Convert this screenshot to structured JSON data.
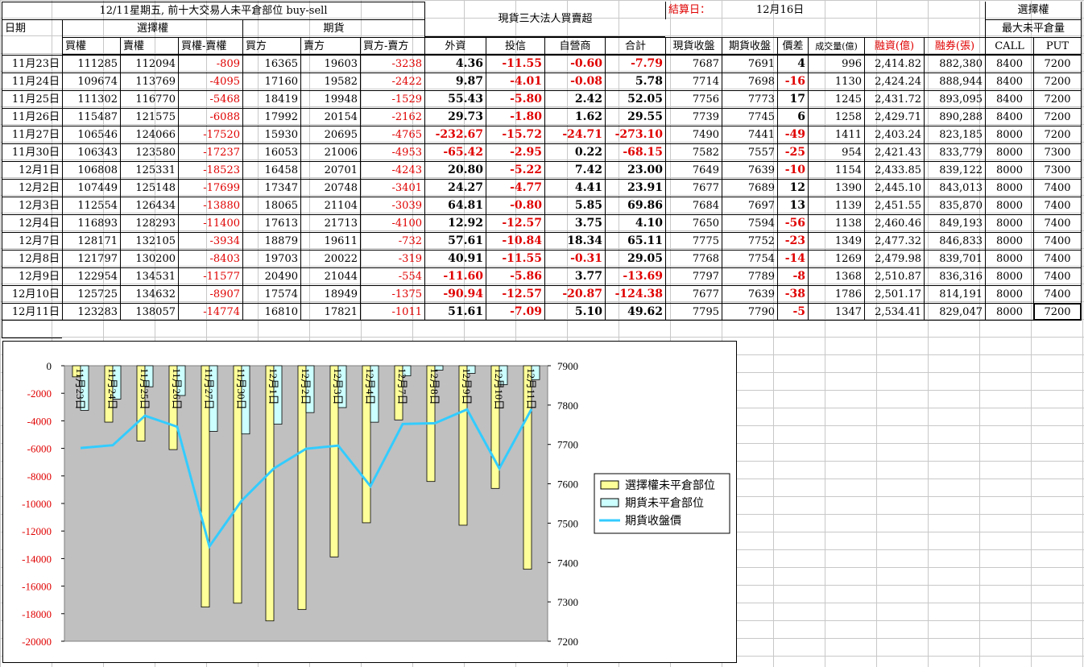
{
  "title": "12/11星期五, 前十大交易人未平倉部位 buy-sell",
  "institution_title": "現貨三大法人買賣超",
  "settlement_label": "結算日：",
  "settlement_date": "12月16日",
  "options_header": "選擇權",
  "max_oi_header": "最大未平倉量",
  "col_date": "日期",
  "col_opt": "選擇權",
  "col_fut": "期貨",
  "headers": {
    "buy_call": "買權",
    "sell_put": "賣權",
    "diff_opt": "買權-賣權",
    "buyer": "買方",
    "seller": "賣方",
    "diff_fut": "買方-賣方",
    "foreign": "外資",
    "trust": "投信",
    "dealer": "自營商",
    "total": "合計",
    "spot_close": "現貨收盤",
    "fut_close": "期貨收盤",
    "spread": "價差",
    "volume": "成交量(億)",
    "margin": "融資(億)",
    "short": "融券(張)",
    "call": "CALL",
    "put": "PUT"
  },
  "rows": [
    {
      "date": "11月23日",
      "buy_call": "111285",
      "sell_put": "112094",
      "diff_opt": "-809",
      "buyer": "16365",
      "seller": "19603",
      "diff_fut": "-3238",
      "foreign": "4.36",
      "trust": "-11.55",
      "dealer": "-0.60",
      "total": "-7.79",
      "spot": "7687",
      "fut": "7691",
      "spread": "4",
      "volume": "996",
      "margin": "2,414.82",
      "short": "882,380",
      "call": "8400",
      "put": "7200"
    },
    {
      "date": "11月24日",
      "buy_call": "109674",
      "sell_put": "113769",
      "diff_opt": "-4095",
      "buyer": "17160",
      "seller": "19582",
      "diff_fut": "-2422",
      "foreign": "9.87",
      "trust": "-4.01",
      "dealer": "-0.08",
      "total": "5.78",
      "spot": "7714",
      "fut": "7698",
      "spread": "-16",
      "volume": "1130",
      "margin": "2,424.24",
      "short": "888,944",
      "call": "8400",
      "put": "7200"
    },
    {
      "date": "11月25日",
      "buy_call": "111302",
      "sell_put": "116770",
      "diff_opt": "-5468",
      "buyer": "18419",
      "seller": "19948",
      "diff_fut": "-1529",
      "foreign": "55.43",
      "trust": "-5.80",
      "dealer": "2.42",
      "total": "52.05",
      "spot": "7756",
      "fut": "7773",
      "spread": "17",
      "volume": "1245",
      "margin": "2,431.72",
      "short": "893,095",
      "call": "8400",
      "put": "7200"
    },
    {
      "date": "11月26日",
      "buy_call": "115487",
      "sell_put": "121575",
      "diff_opt": "-6088",
      "buyer": "17992",
      "seller": "20154",
      "diff_fut": "-2162",
      "foreign": "29.73",
      "trust": "-1.80",
      "dealer": "1.62",
      "total": "29.55",
      "spot": "7739",
      "fut": "7745",
      "spread": "6",
      "volume": "1258",
      "margin": "2,429.71",
      "short": "890,288",
      "call": "8400",
      "put": "7200"
    },
    {
      "date": "11月27日",
      "buy_call": "106546",
      "sell_put": "124066",
      "diff_opt": "-17520",
      "buyer": "15930",
      "seller": "20695",
      "diff_fut": "-4765",
      "foreign": "-232.67",
      "trust": "-15.72",
      "dealer": "-24.71",
      "total": "-273.10",
      "spot": "7490",
      "fut": "7441",
      "spread": "-49",
      "volume": "1411",
      "margin": "2,403.24",
      "short": "823,185",
      "call": "8000",
      "put": "7200"
    },
    {
      "date": "11月30日",
      "buy_call": "106343",
      "sell_put": "123580",
      "diff_opt": "-17237",
      "buyer": "16053",
      "seller": "21006",
      "diff_fut": "-4953",
      "foreign": "-65.42",
      "trust": "-2.95",
      "dealer": "0.22",
      "total": "-68.15",
      "spot": "7582",
      "fut": "7557",
      "spread": "-25",
      "volume": "954",
      "margin": "2,421.43",
      "short": "833,779",
      "call": "8000",
      "put": "7300"
    },
    {
      "date": "12月1日",
      "buy_call": "106808",
      "sell_put": "125331",
      "diff_opt": "-18523",
      "buyer": "16458",
      "seller": "20701",
      "diff_fut": "-4243",
      "foreign": "20.80",
      "trust": "-5.22",
      "dealer": "7.42",
      "total": "23.00",
      "spot": "7649",
      "fut": "7639",
      "spread": "-10",
      "volume": "1154",
      "margin": "2,433.85",
      "short": "839,122",
      "call": "8000",
      "put": "7300"
    },
    {
      "date": "12月2日",
      "buy_call": "107449",
      "sell_put": "125148",
      "diff_opt": "-17699",
      "buyer": "17347",
      "seller": "20748",
      "diff_fut": "-3401",
      "foreign": "24.27",
      "trust": "-4.77",
      "dealer": "4.41",
      "total": "23.91",
      "spot": "7677",
      "fut": "7689",
      "spread": "12",
      "volume": "1390",
      "margin": "2,445.10",
      "short": "843,013",
      "call": "8000",
      "put": "7400"
    },
    {
      "date": "12月3日",
      "buy_call": "112554",
      "sell_put": "126434",
      "diff_opt": "-13880",
      "buyer": "18065",
      "seller": "21104",
      "diff_fut": "-3039",
      "foreign": "64.81",
      "trust": "-0.80",
      "dealer": "5.85",
      "total": "69.86",
      "spot": "7684",
      "fut": "7697",
      "spread": "13",
      "volume": "1139",
      "margin": "2,451.55",
      "short": "835,870",
      "call": "8000",
      "put": "7400"
    },
    {
      "date": "12月4日",
      "buy_call": "116893",
      "sell_put": "128293",
      "diff_opt": "-11400",
      "buyer": "17613",
      "seller": "21713",
      "diff_fut": "-4100",
      "foreign": "12.92",
      "trust": "-12.57",
      "dealer": "3.75",
      "total": "4.10",
      "spot": "7650",
      "fut": "7594",
      "spread": "-56",
      "volume": "1138",
      "margin": "2,460.46",
      "short": "849,193",
      "call": "8000",
      "put": "7400"
    },
    {
      "date": "12月7日",
      "buy_call": "128171",
      "sell_put": "132105",
      "diff_opt": "-3934",
      "buyer": "18879",
      "seller": "19611",
      "diff_fut": "-732",
      "foreign": "57.61",
      "trust": "-10.84",
      "dealer": "18.34",
      "total": "65.11",
      "spot": "7775",
      "fut": "7752",
      "spread": "-23",
      "volume": "1349",
      "margin": "2,477.32",
      "short": "846,833",
      "call": "8000",
      "put": "7400"
    },
    {
      "date": "12月8日",
      "buy_call": "121797",
      "sell_put": "130200",
      "diff_opt": "-8403",
      "buyer": "19703",
      "seller": "20022",
      "diff_fut": "-319",
      "foreign": "40.91",
      "trust": "-11.55",
      "dealer": "-0.31",
      "total": "29.05",
      "spot": "7768",
      "fut": "7754",
      "spread": "-14",
      "volume": "1269",
      "margin": "2,479.98",
      "short": "839,701",
      "call": "8000",
      "put": "7400"
    },
    {
      "date": "12月9日",
      "buy_call": "122954",
      "sell_put": "134531",
      "diff_opt": "-11577",
      "buyer": "20490",
      "seller": "21044",
      "diff_fut": "-554",
      "foreign": "-11.60",
      "trust": "-5.86",
      "dealer": "3.77",
      "total": "-13.69",
      "spot": "7797",
      "fut": "7789",
      "spread": "-8",
      "volume": "1368",
      "margin": "2,510.87",
      "short": "836,316",
      "call": "8000",
      "put": "7400"
    },
    {
      "date": "12月10日",
      "buy_call": "125725",
      "sell_put": "134632",
      "diff_opt": "-8907",
      "buyer": "17574",
      "seller": "18949",
      "diff_fut": "-1375",
      "foreign": "-90.94",
      "trust": "-12.57",
      "dealer": "-20.87",
      "total": "-124.38",
      "spot": "7677",
      "fut": "7639",
      "spread": "-38",
      "volume": "1786",
      "margin": "2,501.17",
      "short": "814,191",
      "call": "8000",
      "put": "7400"
    },
    {
      "date": "12月11日",
      "buy_call": "123283",
      "sell_put": "138057",
      "diff_opt": "-14774",
      "buyer": "16810",
      "seller": "17821",
      "diff_fut": "-1011",
      "foreign": "51.61",
      "trust": "-7.09",
      "dealer": "5.10",
      "total": "49.62",
      "spot": "7795",
      "fut": "7790",
      "spread": "-5",
      "volume": "1347",
      "margin": "2,534.41",
      "short": "829,047",
      "call": "8000",
      "put": "7200"
    }
  ],
  "chart_data": {
    "type": "bar",
    "categories": [
      "11月23日",
      "11月24日",
      "11月25日",
      "11月26日",
      "11月27日",
      "11月30日",
      "12月1日",
      "12月2日",
      "12月3日",
      "12月4日",
      "12月7日",
      "12月8日",
      "12月9日",
      "12月10日",
      "12月11日"
    ],
    "series": [
      {
        "name": "選擇權未平倉部位",
        "axis": "left",
        "type": "bar",
        "color": "#ffff99",
        "values": [
          -809,
          -4095,
          -5468,
          -6088,
          -17520,
          -17237,
          -18523,
          -17699,
          -13880,
          -11400,
          -3934,
          -8403,
          -11577,
          -8907,
          -14774
        ]
      },
      {
        "name": "期貨未平倉部位",
        "axis": "left",
        "type": "bar",
        "color": "#ccffff",
        "values": [
          -3238,
          -2422,
          -1529,
          -2162,
          -4765,
          -4953,
          -4243,
          -3401,
          -3039,
          -4100,
          -732,
          -319,
          -554,
          -1375,
          -1011
        ]
      },
      {
        "name": "期貨收盤價",
        "axis": "right",
        "type": "line",
        "color": "#33ccff",
        "values": [
          7691,
          7698,
          7773,
          7745,
          7441,
          7557,
          7639,
          7689,
          7697,
          7594,
          7752,
          7754,
          7789,
          7639,
          7790
        ]
      }
    ],
    "y_left": {
      "min": -20000,
      "max": 0,
      "ticks": [
        0,
        -2000,
        -4000,
        -6000,
        -8000,
        -10000,
        -12000,
        -14000,
        -16000,
        -18000,
        -20000
      ]
    },
    "y_right": {
      "min": 7200,
      "max": 7900,
      "ticks": [
        7900,
        7800,
        7700,
        7600,
        7500,
        7400,
        7300,
        7200
      ]
    },
    "legend_position": "right",
    "plot_background": "#c0c0c0"
  }
}
